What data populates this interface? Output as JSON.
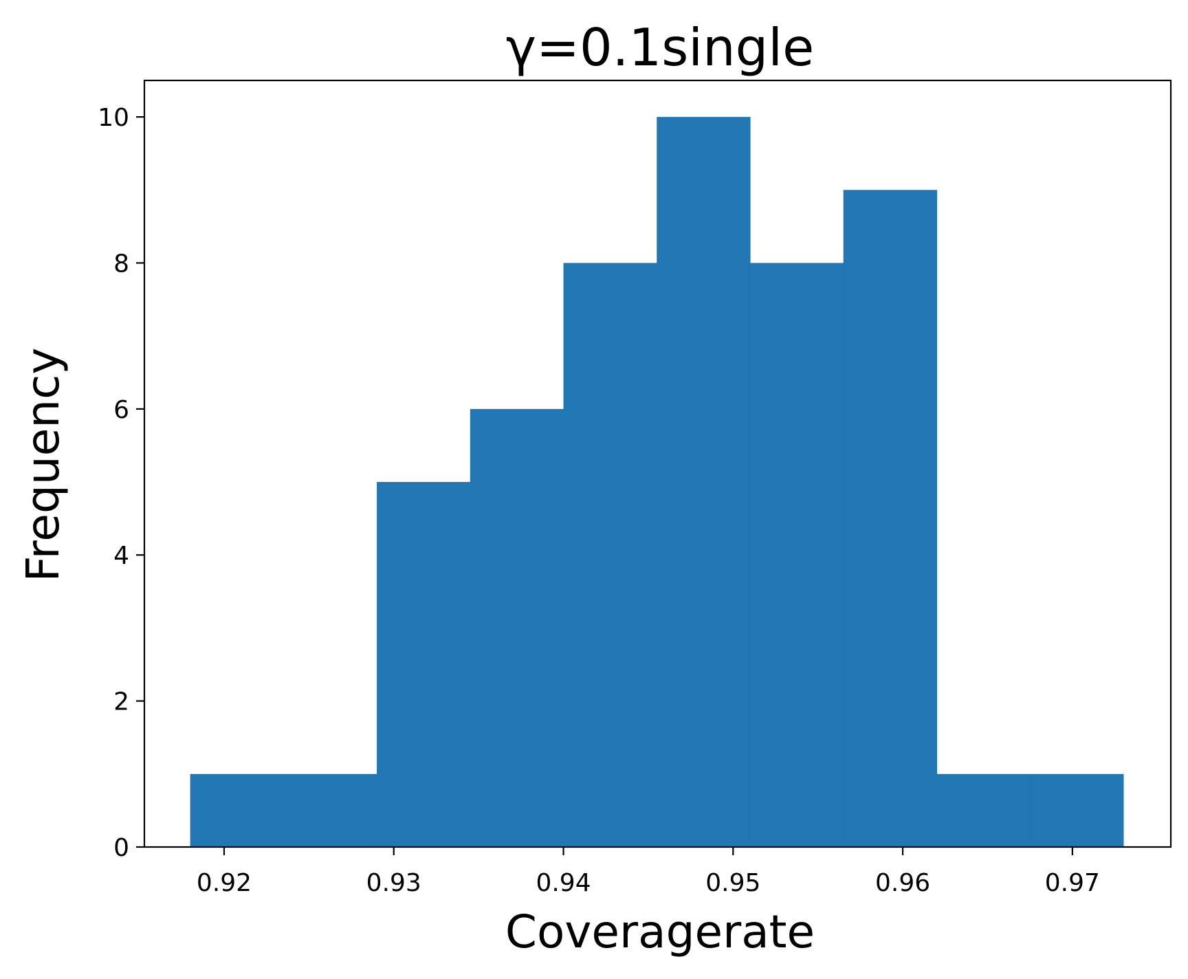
{
  "chart_data": {
    "type": "bar",
    "title": "γ=0.1single",
    "xlabel": "Coveragerate",
    "ylabel": "Frequency",
    "bar_color": "#2077b4",
    "bins": [
      {
        "start": 0.918,
        "end": 0.9235,
        "count": 1
      },
      {
        "start": 0.9235,
        "end": 0.929,
        "count": 1
      },
      {
        "start": 0.929,
        "end": 0.9345,
        "count": 5
      },
      {
        "start": 0.9345,
        "end": 0.94,
        "count": 6
      },
      {
        "start": 0.94,
        "end": 0.9455,
        "count": 8
      },
      {
        "start": 0.9455,
        "end": 0.951,
        "count": 10
      },
      {
        "start": 0.951,
        "end": 0.9565,
        "count": 8
      },
      {
        "start": 0.9565,
        "end": 0.962,
        "count": 9
      },
      {
        "start": 0.962,
        "end": 0.9675,
        "count": 1
      },
      {
        "start": 0.9675,
        "end": 0.973,
        "count": 1
      }
    ],
    "xlim": [
      0.9153,
      0.9758
    ],
    "ylim": [
      0,
      10.5
    ],
    "xticks": [
      0.92,
      0.93,
      0.94,
      0.95,
      0.96,
      0.97
    ],
    "xtick_labels": [
      "0.92",
      "0.93",
      "0.94",
      "0.95",
      "0.96",
      "0.97"
    ],
    "yticks": [
      0,
      2,
      4,
      6,
      8,
      10
    ],
    "ytick_labels": [
      "0",
      "2",
      "4",
      "6",
      "8",
      "10"
    ],
    "grid": false,
    "legend": null
  }
}
